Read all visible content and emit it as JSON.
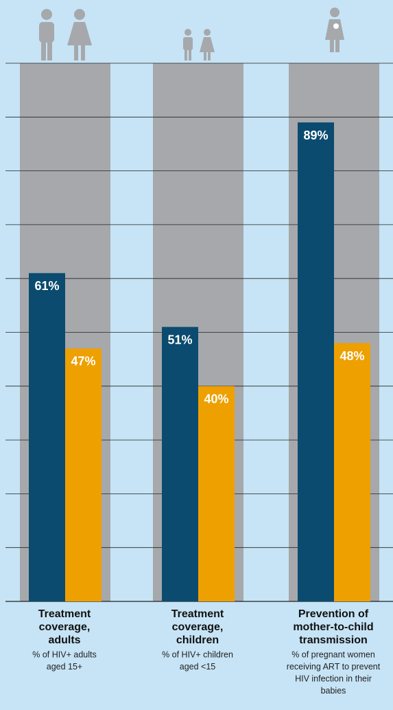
{
  "chart_data": {
    "type": "bar",
    "categories": [
      [
        "Treatment",
        "coverage,",
        "adults"
      ],
      [
        "Treatment",
        "coverage,",
        "children"
      ],
      [
        "Prevention of",
        "mother-to-child",
        "transmission"
      ]
    ],
    "category_notes": [
      [
        "% of HIV+ adults",
        "aged 15+"
      ],
      [
        "% of HIV+ children",
        "aged <15"
      ],
      [
        "% of pregnant women",
        "receiving ART to prevent",
        "HIV infection in their",
        "babies"
      ]
    ],
    "series": [
      {
        "color": "#0b4b6f",
        "values": [
          61,
          51,
          89
        ],
        "value_labels": [
          "61%",
          "51%",
          "89%"
        ]
      },
      {
        "color": "#eda000",
        "values": [
          47,
          40,
          48
        ],
        "value_labels": [
          "47%",
          "40%",
          "48%"
        ]
      }
    ],
    "background_color": "#a6a8ab",
    "ylim": [
      0,
      100
    ],
    "yticks": [
      0,
      10,
      20,
      30,
      40,
      50,
      60,
      70,
      80,
      90,
      100
    ],
    "grid": true
  }
}
